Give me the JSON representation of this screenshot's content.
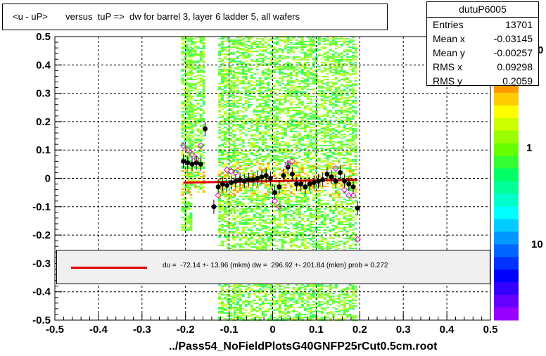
{
  "title": "<u - uP>       versus  tuP =>  dw for barrel 3, layer 6 ladder 5, all wafers",
  "footer": "../Pass54_NoFieldPlotsG40GNFP25rCut0.5cm.root",
  "stats": {
    "name": "dutuP6005",
    "rows": [
      {
        "label": "Entries",
        "value": "13701"
      },
      {
        "label": "Mean x",
        "value": "-0.03145"
      },
      {
        "label": "Mean y",
        "value": "-0.00257"
      },
      {
        "label": "RMS x",
        "value": "0.09298"
      },
      {
        "label": "RMS y",
        "value": "0.2059"
      }
    ]
  },
  "fit": {
    "text": "du =  -72.14 +- 13.96 (mkm) dw =  296.92 +- 201.84 (mkm) prob = 0.272",
    "line_color": "#e00000"
  },
  "colorbar": {
    "labels": [
      "1",
      "10"
    ],
    "top_partial_label": "0"
  },
  "chart_data": {
    "type": "scatter",
    "title": "<u - uP>       versus  tuP =>  dw for barrel 3, layer 6 ladder 5, all wafers",
    "xlim": [
      -0.5,
      0.5
    ],
    "ylim": [
      -0.5,
      0.5
    ],
    "x_ticks": [
      "-0.5",
      "-0.4",
      "-0.3",
      "-0.2",
      "-0.1",
      "0",
      "0.1",
      "0.2",
      "0.3",
      "0.4",
      "0.5"
    ],
    "y_ticks": [
      "-0.5",
      "-0.4",
      "-0.3",
      "-0.2",
      "-0.1",
      "0",
      "0.1",
      "0.2",
      "0.3",
      "0.4",
      "0.5"
    ],
    "grid": true,
    "heatmap_bands": [
      {
        "x0": -0.21,
        "x1": -0.19,
        "y0": -0.18,
        "y1": 0.5
      },
      {
        "x0": -0.2,
        "x1": -0.16,
        "y0": -0.05,
        "y1": 0.5
      },
      {
        "x0": -0.125,
        "x1": -0.09,
        "y0": -0.5,
        "y1": 0.5
      },
      {
        "x0": -0.09,
        "x1": 0.19,
        "y0": -0.5,
        "y1": 0.5
      }
    ],
    "profile_points": [
      {
        "x": -0.205,
        "y": 0.06
      },
      {
        "x": -0.195,
        "y": 0.055
      },
      {
        "x": -0.185,
        "y": 0.05
      },
      {
        "x": -0.175,
        "y": 0.055
      },
      {
        "x": -0.165,
        "y": 0.05
      },
      {
        "x": -0.155,
        "y": 0.175
      },
      {
        "x": -0.135,
        "y": -0.1
      },
      {
        "x": -0.125,
        "y": -0.03
      },
      {
        "x": -0.115,
        "y": -0.02
      },
      {
        "x": -0.105,
        "y": -0.025
      },
      {
        "x": -0.095,
        "y": -0.015
      },
      {
        "x": -0.085,
        "y": -0.01
      },
      {
        "x": -0.075,
        "y": -0.005
      },
      {
        "x": -0.065,
        "y": -0.01
      },
      {
        "x": -0.055,
        "y": -0.005
      },
      {
        "x": -0.045,
        "y": -0.005
      },
      {
        "x": -0.035,
        "y": 0.0
      },
      {
        "x": -0.025,
        "y": 0.005
      },
      {
        "x": -0.015,
        "y": 0.01
      },
      {
        "x": -0.005,
        "y": 0.0
      },
      {
        "x": 0.005,
        "y": -0.05
      },
      {
        "x": 0.015,
        "y": -0.03
      },
      {
        "x": 0.025,
        "y": 0.01
      },
      {
        "x": 0.035,
        "y": 0.04
      },
      {
        "x": 0.045,
        "y": 0.015
      },
      {
        "x": 0.055,
        "y": -0.02
      },
      {
        "x": 0.065,
        "y": -0.02
      },
      {
        "x": 0.075,
        "y": -0.03
      },
      {
        "x": 0.085,
        "y": -0.02
      },
      {
        "x": 0.095,
        "y": -0.015
      },
      {
        "x": 0.105,
        "y": -0.01
      },
      {
        "x": 0.115,
        "y": -0.005
      },
      {
        "x": 0.125,
        "y": 0.015
      },
      {
        "x": 0.135,
        "y": 0.005
      },
      {
        "x": 0.145,
        "y": -0.01
      },
      {
        "x": 0.155,
        "y": 0.02
      },
      {
        "x": 0.165,
        "y": -0.01
      },
      {
        "x": 0.175,
        "y": -0.02
      },
      {
        "x": 0.185,
        "y": -0.03
      },
      {
        "x": 0.195,
        "y": -0.105
      }
    ],
    "open_points": [
      {
        "x": -0.205,
        "y": 0.115
      },
      {
        "x": -0.195,
        "y": 0.1
      },
      {
        "x": -0.185,
        "y": 0.085
      },
      {
        "x": -0.175,
        "y": 0.07
      },
      {
        "x": -0.165,
        "y": 0.115
      },
      {
        "x": -0.125,
        "y": -0.06
      },
      {
        "x": -0.105,
        "y": 0.03
      },
      {
        "x": -0.095,
        "y": 0.025
      },
      {
        "x": -0.085,
        "y": 0.02
      },
      {
        "x": 0.005,
        "y": -0.08
      },
      {
        "x": 0.015,
        "y": -0.1
      },
      {
        "x": 0.035,
        "y": 0.05
      },
      {
        "x": 0.045,
        "y": 0.06
      },
      {
        "x": 0.145,
        "y": 0.035
      },
      {
        "x": 0.165,
        "y": -0.04
      },
      {
        "x": 0.175,
        "y": -0.06
      },
      {
        "x": 0.185,
        "y": -0.06
      },
      {
        "x": 0.195,
        "y": -0.215
      }
    ],
    "fit_line": {
      "x0": -0.205,
      "y0": -0.015,
      "x1": 0.195,
      "y1": -0.005,
      "color": "#e00000"
    }
  }
}
